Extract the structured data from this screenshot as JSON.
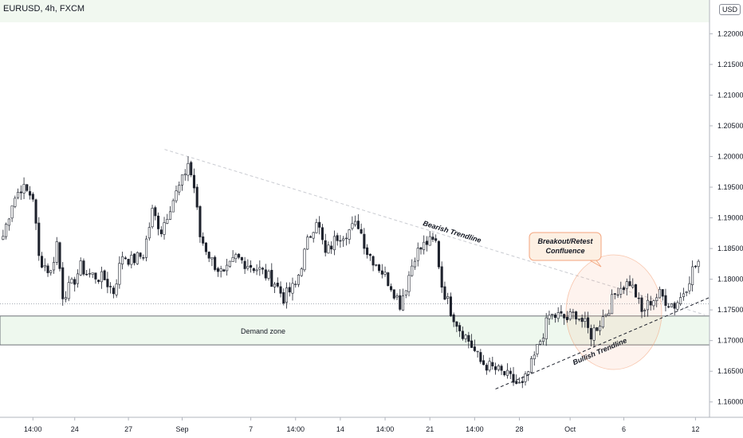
{
  "symbol": "EURUSD, 4h, FXCM",
  "currency_badge": "USD",
  "chart_data": {
    "type": "candlestick",
    "symbol": "EURUSD",
    "timeframe": "4h",
    "source": "FXCM",
    "y_ticks": [
      1.16,
      1.165,
      1.17,
      1.175,
      1.18,
      1.185,
      1.19,
      1.195,
      1.2,
      1.205,
      1.21,
      1.215,
      1.22
    ],
    "y_tick_labels": [
      "1.16000",
      "1.16500",
      "1.17000",
      "1.17500",
      "1.18000",
      "1.18500",
      "1.19000",
      "1.19500",
      "1.20000",
      "1.20500",
      "1.21000",
      "1.21500",
      "1.22000"
    ],
    "ylim": [
      1.1575,
      1.2255
    ],
    "x_ticks": [
      {
        "label": "14:00",
        "index": 10
      },
      {
        "label": "24",
        "index": 24
      },
      {
        "label": "27",
        "index": 42
      },
      {
        "label": "Sep",
        "index": 60
      },
      {
        "label": "7",
        "index": 83
      },
      {
        "label": "14:00",
        "index": 98
      },
      {
        "label": "14",
        "index": 113
      },
      {
        "label": "14:00",
        "index": 128
      },
      {
        "label": "21",
        "index": 143
      },
      {
        "label": "14:00",
        "index": 158
      },
      {
        "label": "28",
        "index": 173
      },
      {
        "label": "Oct",
        "index": 190
      },
      {
        "label": "6",
        "index": 208
      },
      {
        "label": "12",
        "index": 232
      }
    ],
    "candle_count": 234,
    "close_path": [
      [
        0,
        1.187
      ],
      [
        3,
        1.1925
      ],
      [
        6,
        1.195
      ],
      [
        10,
        1.1935
      ],
      [
        12,
        1.1835
      ],
      [
        16,
        1.181
      ],
      [
        18,
        1.186
      ],
      [
        20,
        1.1775
      ],
      [
        23,
        1.179
      ],
      [
        26,
        1.182
      ],
      [
        28,
        1.181
      ],
      [
        31,
        1.1805
      ],
      [
        34,
        1.18
      ],
      [
        37,
        1.178
      ],
      [
        40,
        1.184
      ],
      [
        43,
        1.183
      ],
      [
        47,
        1.184
      ],
      [
        50,
        1.191
      ],
      [
        53,
        1.188
      ],
      [
        56,
        1.192
      ],
      [
        60,
        1.196
      ],
      [
        62,
        1.199
      ],
      [
        64,
        1.195
      ],
      [
        66,
        1.187
      ],
      [
        70,
        1.183
      ],
      [
        74,
        1.1805
      ],
      [
        78,
        1.1835
      ],
      [
        82,
        1.1825
      ],
      [
        86,
        1.1815
      ],
      [
        91,
        1.1795
      ],
      [
        94,
        1.177
      ],
      [
        98,
        1.179
      ],
      [
        102,
        1.186
      ],
      [
        105,
        1.19
      ],
      [
        108,
        1.184
      ],
      [
        112,
        1.187
      ],
      [
        116,
        1.188
      ],
      [
        119,
        1.189
      ],
      [
        122,
        1.1845
      ],
      [
        126,
        1.182
      ],
      [
        130,
        1.179
      ],
      [
        133,
        1.176
      ],
      [
        135,
        1.179
      ],
      [
        138,
        1.184
      ],
      [
        142,
        1.186
      ],
      [
        145,
        1.186
      ],
      [
        147,
        1.179
      ],
      [
        150,
        1.175
      ],
      [
        153,
        1.172
      ],
      [
        156,
        1.17
      ],
      [
        160,
        1.1665
      ],
      [
        164,
        1.1655
      ],
      [
        168,
        1.1645
      ],
      [
        172,
        1.163
      ],
      [
        174,
        1.1625
      ],
      [
        177,
        1.166
      ],
      [
        180,
        1.17
      ],
      [
        183,
        1.174
      ],
      [
        186,
        1.174
      ],
      [
        189,
        1.1735
      ],
      [
        192,
        1.1745
      ],
      [
        195,
        1.1725
      ],
      [
        197,
        1.171
      ],
      [
        200,
        1.173
      ],
      [
        203,
        1.1755
      ],
      [
        206,
        1.1785
      ],
      [
        208,
        1.179
      ],
      [
        210,
        1.1795
      ],
      [
        212,
        1.1775
      ],
      [
        214,
        1.1745
      ],
      [
        217,
        1.1765
      ],
      [
        220,
        1.1775
      ],
      [
        223,
        1.1762
      ],
      [
        225,
        1.1758
      ],
      [
        227,
        1.177
      ],
      [
        229,
        1.179
      ],
      [
        231,
        1.1815
      ],
      [
        233,
        1.1828
      ]
    ],
    "annotations": {
      "demand_zone": {
        "label": "Demand zone",
        "top": 1.174,
        "bottom": 1.1693
      },
      "horizontal_level": 1.176,
      "bearish_trendline": {
        "label": "Bearish Trendline",
        "from": [
          60,
          1.2005
        ],
        "to": [
          233,
          1.1742
        ]
      },
      "bullish_trendline": {
        "label": "Bullish Trendline",
        "from": [
          165,
          1.1625
        ],
        "to": [
          234,
          1.1765
        ]
      },
      "callout": {
        "label_line1": "Breakout/Retest",
        "label_line2": "Confluence"
      }
    }
  }
}
